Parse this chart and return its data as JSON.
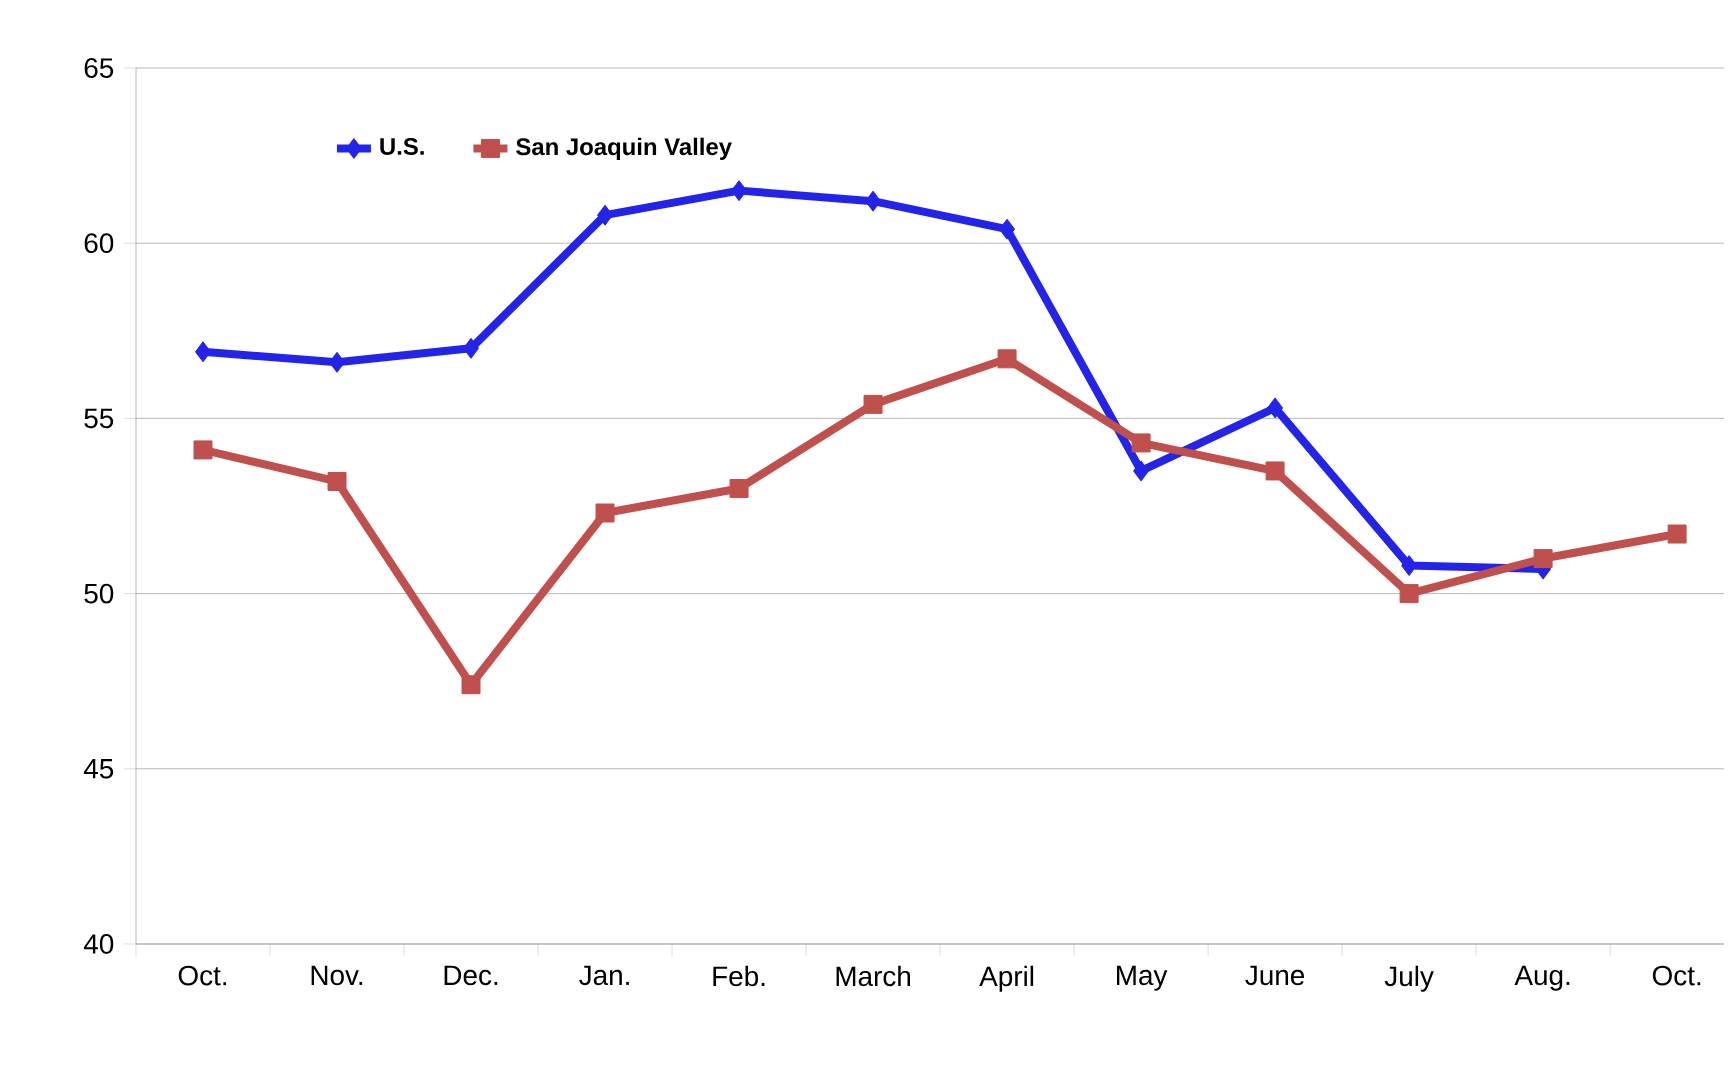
{
  "chart_data": {
    "type": "line",
    "categories": [
      "Oct.",
      "Nov.",
      "Dec.",
      "Jan.",
      "Feb.",
      "March",
      "April",
      "May",
      "June",
      "July",
      "Aug.",
      "Oct."
    ],
    "series": [
      {
        "name": "U.S.",
        "color": "#2424e8",
        "marker": "diamond",
        "values": [
          56.9,
          56.6,
          57.0,
          60.8,
          61.5,
          61.2,
          60.4,
          53.5,
          55.3,
          50.8,
          50.7,
          null
        ]
      },
      {
        "name": "San Joaquin Valley",
        "color": "#c0504d",
        "marker": "square",
        "values": [
          54.1,
          53.2,
          47.4,
          52.3,
          53.0,
          55.4,
          56.7,
          54.3,
          53.5,
          50.0,
          51.0,
          51.7
        ]
      }
    ],
    "ylim": [
      40,
      65
    ],
    "yticks": [
      40,
      45,
      50,
      55,
      60,
      65
    ],
    "grid": "y",
    "legend": "top left"
  }
}
